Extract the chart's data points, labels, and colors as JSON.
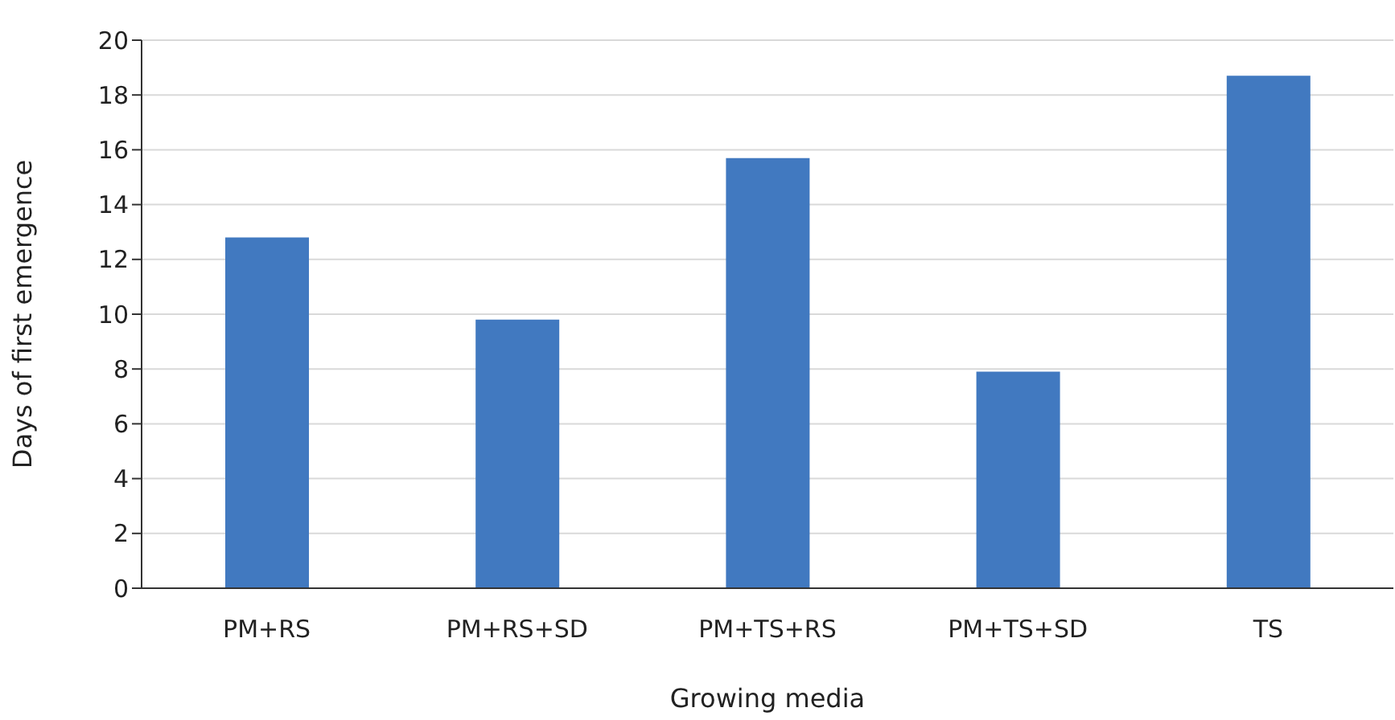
{
  "chart_data": {
    "type": "bar",
    "xlabel": "Growing media",
    "ylabel": "Days of first emergence",
    "categories": [
      "PM+RS",
      "PM+RS+SD",
      "PM+TS+RS",
      "PM+TS+SD",
      "TS"
    ],
    "values": [
      12.8,
      9.8,
      15.7,
      7.9,
      18.7
    ],
    "color": "#4179c0",
    "ylim": [
      0,
      20
    ],
    "yticks": [
      0,
      2,
      4,
      6,
      8,
      10,
      12,
      14,
      16,
      18,
      20
    ],
    "grid": "y"
  }
}
